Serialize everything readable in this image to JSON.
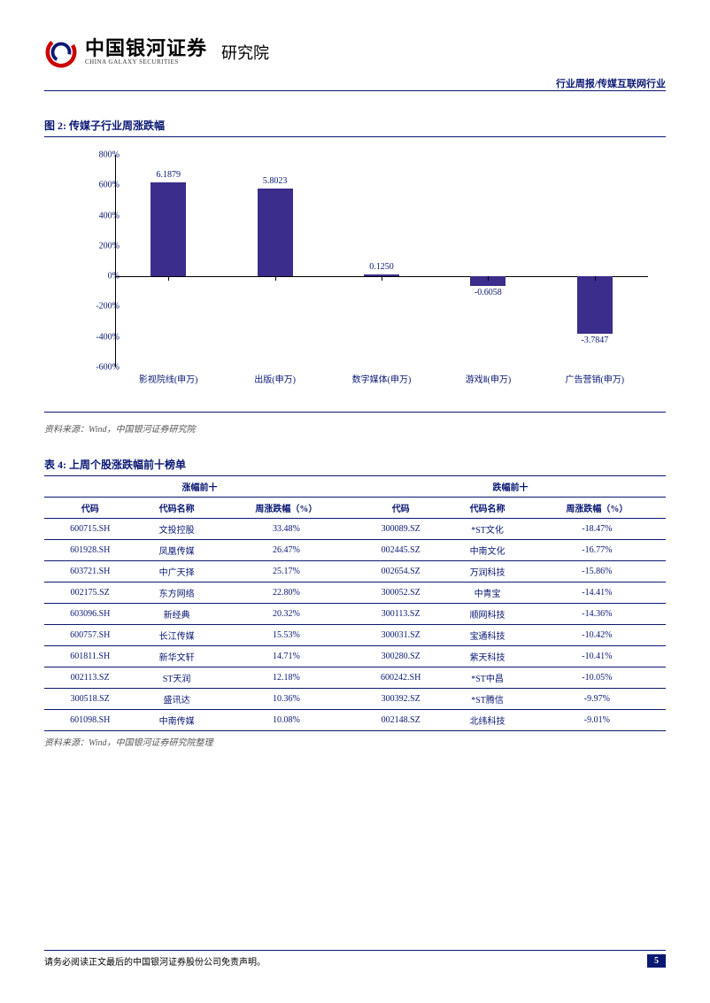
{
  "header": {
    "logo_cn": "中国银河证券",
    "logo_en": "CHINA GALAXY SECURITIES",
    "logo_sub": "研究院",
    "breadcrumb": "行业周报/传媒互联网行业"
  },
  "figure": {
    "title": "图 2: 传媒子行业周涨跌幅",
    "y_ticks": [
      "800%",
      "600%",
      "400%",
      "200%",
      "0%",
      "-200%",
      "-400%",
      "-600%"
    ],
    "y_range": [
      -6,
      8
    ],
    "categories": [
      "影视院线(申万)",
      "出版(申万)",
      "数字媒体(申万)",
      "游戏Ⅱ(申万)",
      "广告营销(申万)"
    ],
    "values": [
      6.1879,
      5.8023,
      0.125,
      -0.6058,
      -3.7847
    ],
    "labels": [
      "6.1879",
      "5.8023",
      "0.1250",
      "-0.6058",
      "-3.7847"
    ],
    "bar_color": "#3b2d8c",
    "source": "资料来源：Wind，中国银河证券研究院"
  },
  "table": {
    "title": "表 4: 上周个股涨跌幅前十榜单",
    "group_headers": [
      "涨幅前十",
      "跌幅前十"
    ],
    "col_headers": [
      "代码",
      "代码名称",
      "周涨跌幅（%）",
      "代码",
      "代码名称",
      "周涨跌幅（%）"
    ],
    "rows": [
      [
        "600715.SH",
        "文投控股",
        "33.48%",
        "300089.SZ",
        "*ST文化",
        "-18.47%"
      ],
      [
        "601928.SH",
        "凤凰传媒",
        "26.47%",
        "002445.SZ",
        "中南文化",
        "-16.77%"
      ],
      [
        "603721.SH",
        "中广天择",
        "25.17%",
        "002654.SZ",
        "万润科技",
        "-15.86%"
      ],
      [
        "002175.SZ",
        "东方网络",
        "22.80%",
        "300052.SZ",
        "中青宝",
        "-14.41%"
      ],
      [
        "603096.SH",
        "新经典",
        "20.32%",
        "300113.SZ",
        "顺网科技",
        "-14.36%"
      ],
      [
        "600757.SH",
        "长江传媒",
        "15.53%",
        "300031.SZ",
        "宝通科技",
        "-10.42%"
      ],
      [
        "601811.SH",
        "新华文轩",
        "14.71%",
        "300280.SZ",
        "紫天科技",
        "-10.41%"
      ],
      [
        "002113.SZ",
        "ST天润",
        "12.18%",
        "600242.SH",
        "*ST中昌",
        "-10.05%"
      ],
      [
        "300518.SZ",
        "盛讯达",
        "10.36%",
        "300392.SZ",
        "*ST腾信",
        "-9.97%"
      ],
      [
        "601098.SH",
        "中南传媒",
        "10.08%",
        "002148.SZ",
        "北纬科技",
        "-9.01%"
      ]
    ],
    "source": "资料来源：Wind，中国银河证券研究院整理"
  },
  "footer": {
    "disclaimer": "请务必阅读正文最后的中国银河证券股份公司免责声明。",
    "page": "5"
  }
}
